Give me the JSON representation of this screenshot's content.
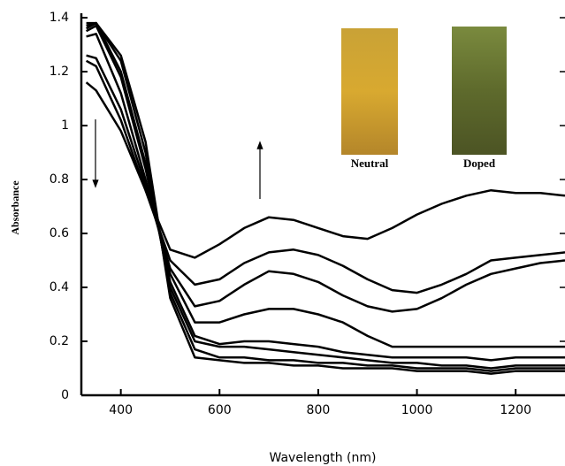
{
  "chart_data": {
    "type": "line",
    "x_label": "Wavelength (nm)",
    "y_label": "Absorbance",
    "annotations": [
      "Neutral",
      "Doped"
    ],
    "x": [
      330,
      350,
      400,
      450,
      500,
      550,
      600,
      650,
      700,
      750,
      800,
      850,
      900,
      950,
      1000,
      1050,
      1100,
      1150,
      1200,
      1250,
      1300
    ],
    "series": [
      {
        "color": "#000000",
        "values": [
          1.16,
          1.13,
          0.98,
          0.76,
          0.54,
          0.51,
          0.56,
          0.62,
          0.66,
          0.65,
          0.62,
          0.59,
          0.58,
          0.62,
          0.67,
          0.71,
          0.74,
          0.76,
          0.75,
          0.75,
          0.74
        ]
      },
      {
        "color": "#000000",
        "values": [
          1.24,
          1.22,
          1.02,
          0.76,
          0.5,
          0.41,
          0.43,
          0.49,
          0.53,
          0.54,
          0.52,
          0.48,
          0.43,
          0.39,
          0.38,
          0.41,
          0.45,
          0.5,
          0.51,
          0.52,
          0.53
        ]
      },
      {
        "color": "#000000",
        "values": [
          1.26,
          1.25,
          1.06,
          0.78,
          0.47,
          0.33,
          0.35,
          0.41,
          0.46,
          0.45,
          0.42,
          0.37,
          0.33,
          0.31,
          0.32,
          0.36,
          0.41,
          0.45,
          0.47,
          0.49,
          0.5
        ]
      },
      {
        "color": "#000000",
        "values": [
          1.33,
          1.34,
          1.12,
          0.8,
          0.45,
          0.27,
          0.27,
          0.3,
          0.32,
          0.32,
          0.3,
          0.27,
          0.22,
          0.18,
          0.18,
          0.18,
          0.18,
          0.18,
          0.18,
          0.18,
          0.18
        ]
      },
      {
        "color": "#000000",
        "values": [
          1.35,
          1.37,
          1.18,
          0.84,
          0.42,
          0.22,
          0.19,
          0.2,
          0.2,
          0.19,
          0.18,
          0.16,
          0.15,
          0.14,
          0.14,
          0.14,
          0.14,
          0.13,
          0.14,
          0.14,
          0.14
        ]
      },
      {
        "color": "#000000",
        "values": [
          1.36,
          1.38,
          1.2,
          0.86,
          0.4,
          0.2,
          0.18,
          0.18,
          0.17,
          0.16,
          0.15,
          0.14,
          0.13,
          0.12,
          0.12,
          0.11,
          0.11,
          0.1,
          0.11,
          0.11,
          0.11
        ]
      },
      {
        "color": "#000000",
        "values": [
          1.38,
          1.38,
          1.24,
          0.9,
          0.38,
          0.17,
          0.14,
          0.14,
          0.13,
          0.13,
          0.12,
          0.12,
          0.11,
          0.11,
          0.1,
          0.1,
          0.1,
          0.09,
          0.1,
          0.1,
          0.1
        ]
      },
      {
        "color": "#000000",
        "values": [
          1.37,
          1.38,
          1.26,
          0.94,
          0.36,
          0.14,
          0.13,
          0.12,
          0.12,
          0.11,
          0.11,
          0.1,
          0.1,
          0.1,
          0.09,
          0.09,
          0.09,
          0.08,
          0.09,
          0.09,
          0.09
        ]
      }
    ],
    "xlim": [
      320,
      1300
    ],
    "xticks": [
      400,
      600,
      800,
      1000,
      1200
    ],
    "ylim": [
      0,
      1.4
    ],
    "yticks": [
      0,
      0.2,
      0.4,
      0.6,
      0.8,
      1,
      1.2,
      1.4
    ],
    "grid": false
  }
}
